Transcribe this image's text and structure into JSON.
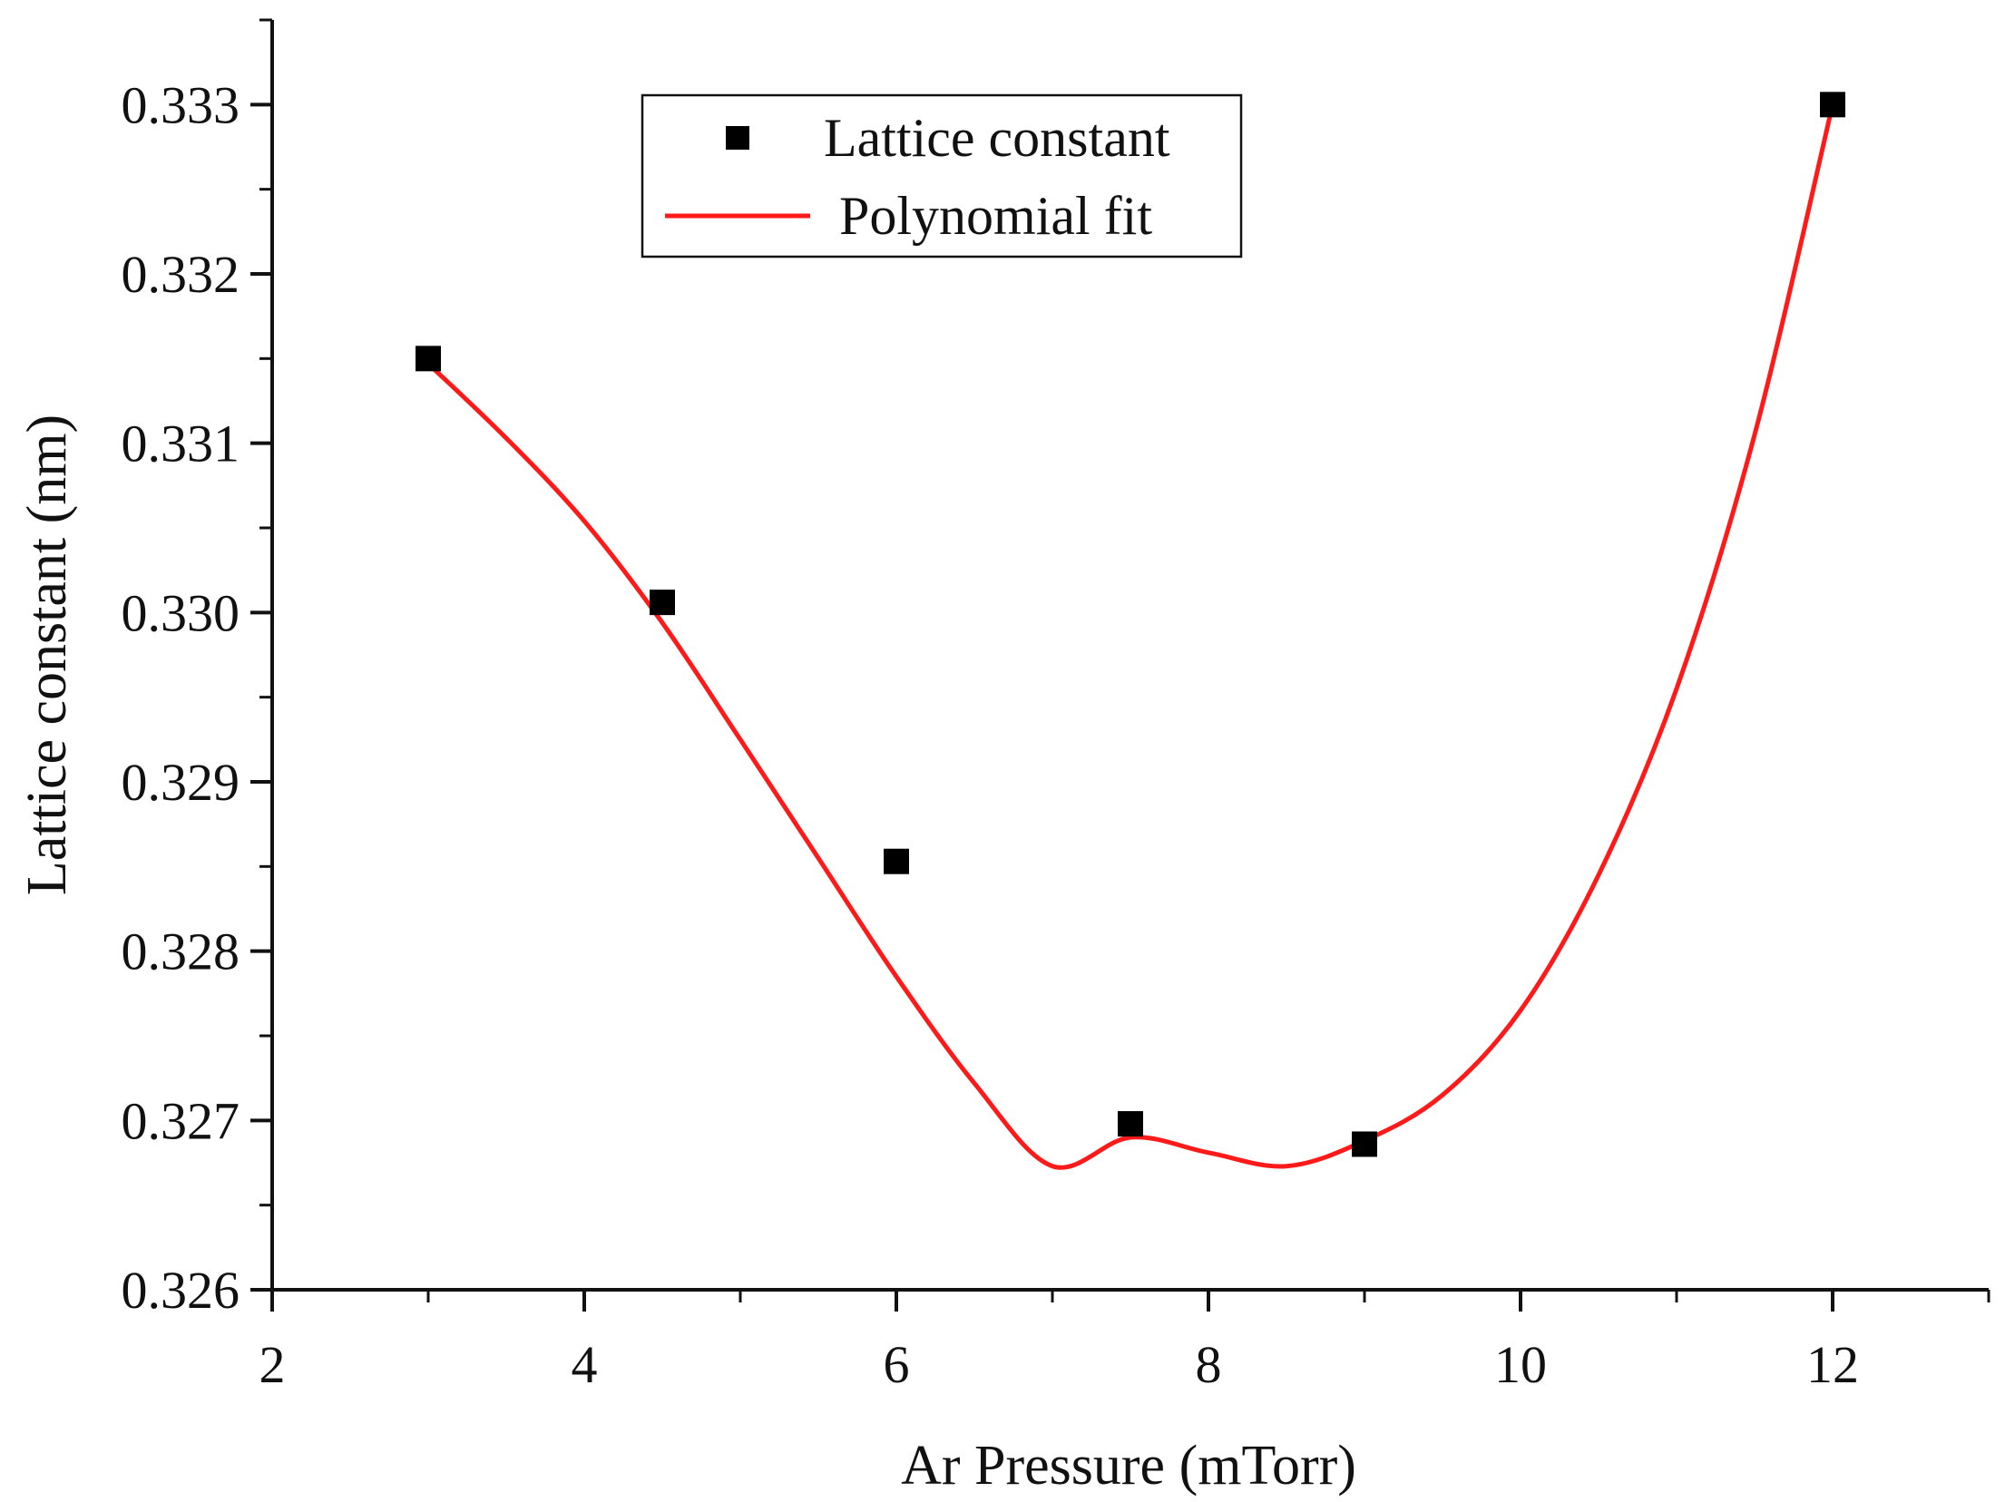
{
  "chart_data": {
    "type": "scatter",
    "title": "",
    "xlabel": "Ar Pressure (mTorr)",
    "ylabel": "Lattice constant (nm)",
    "xlim": [
      2,
      13
    ],
    "ylim": [
      0.326,
      0.3335
    ],
    "xticks": [
      2,
      4,
      6,
      8,
      10,
      12
    ],
    "xtick_labels": [
      "2",
      "4",
      "6",
      "8",
      "10",
      "12"
    ],
    "yticks": [
      0.326,
      0.327,
      0.328,
      0.329,
      0.33,
      0.331,
      0.332,
      0.333
    ],
    "ytick_labels": [
      "0.326",
      "0.327",
      "0.328",
      "0.329",
      "0.330",
      "0.331",
      "0.332",
      "0.333"
    ],
    "grid": false,
    "legend_position": "top-center",
    "series": [
      {
        "name": "Lattice constant",
        "kind": "scatter",
        "marker": "square",
        "color": "#000000",
        "x": [
          3,
          4.5,
          6,
          7.5,
          9,
          12
        ],
        "y": [
          0.3315,
          0.33006,
          0.32853,
          0.32698,
          0.32686,
          0.333
        ]
      },
      {
        "name": "Polynomial fit",
        "kind": "line",
        "color": "#ff1a1a",
        "x": [
          3,
          3.5,
          4,
          4.5,
          5,
          5.5,
          6,
          6.5,
          7,
          7.5,
          8,
          8.5,
          9,
          9.5,
          10,
          10.5,
          11,
          11.5,
          12
        ],
        "y": [
          0.33147,
          0.33103,
          0.33054,
          0.32994,
          0.32925,
          0.32855,
          0.32785,
          0.32722,
          0.32673,
          0.3269,
          0.32681,
          0.32673,
          0.32688,
          0.32715,
          0.32765,
          0.32845,
          0.32955,
          0.33105,
          0.333
        ]
      }
    ]
  }
}
